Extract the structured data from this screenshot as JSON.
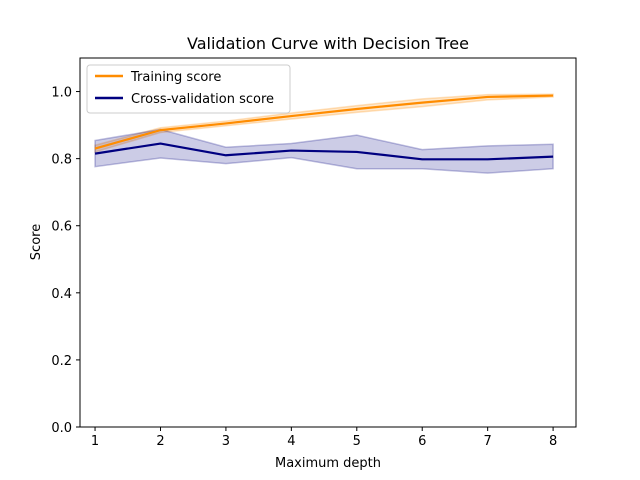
{
  "chart_data": {
    "type": "line",
    "title": "Validation Curve with Decision Tree",
    "xlabel": "Maximum depth",
    "ylabel": "Score",
    "x": [
      1,
      2,
      3,
      4,
      5,
      6,
      7,
      8
    ],
    "xlim": [
      0.77,
      8.35
    ],
    "ylim": [
      0.0,
      1.1
    ],
    "xticks": [
      1,
      2,
      3,
      4,
      5,
      6,
      7,
      8
    ],
    "yticks": [
      0.0,
      0.2,
      0.4,
      0.6,
      0.8,
      1.0
    ],
    "ytick_labels": [
      "0.0",
      "0.2",
      "0.4",
      "0.6",
      "0.8",
      "1.0"
    ],
    "grid": false,
    "legend_position": "upper-left",
    "series": [
      {
        "name": "Training score",
        "color": "#ff8c00",
        "values": [
          0.83,
          0.885,
          0.905,
          0.927,
          0.948,
          0.967,
          0.984,
          0.988
        ],
        "band_lower": [
          0.82,
          0.878,
          0.898,
          0.918,
          0.938,
          0.955,
          0.975,
          0.984
        ],
        "band_upper": [
          0.84,
          0.892,
          0.912,
          0.936,
          0.958,
          0.978,
          0.991,
          0.992
        ],
        "band_opacity": 0.2
      },
      {
        "name": "Cross-validation score",
        "color": "#000080",
        "values": [
          0.815,
          0.845,
          0.81,
          0.824,
          0.82,
          0.798,
          0.798,
          0.806
        ],
        "band_lower": [
          0.776,
          0.802,
          0.785,
          0.803,
          0.77,
          0.77,
          0.757,
          0.77
        ],
        "band_upper": [
          0.854,
          0.887,
          0.834,
          0.845,
          0.87,
          0.827,
          0.838,
          0.843
        ],
        "band_opacity": 0.2
      }
    ]
  }
}
